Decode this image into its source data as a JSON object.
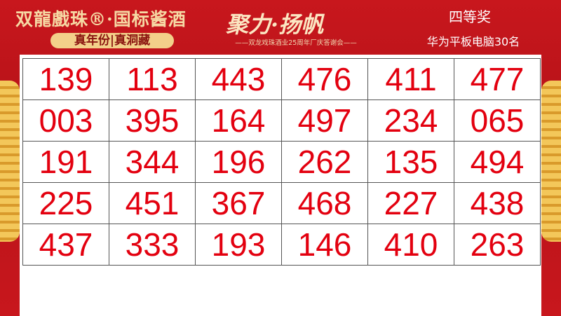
{
  "header": {
    "brand": "双龍戲珠®·国标酱酒",
    "tagline": "真年份|真洞藏",
    "slogan": "聚力·扬帆",
    "subtitle": "——双龙戏珠酒业25周年厂庆答谢会——",
    "prize_level": "四等奖",
    "prize_desc": "华为平板电脑30名"
  },
  "colors": {
    "background": "#c4161c",
    "number": "#e3000f",
    "gold": "#f3d08a"
  },
  "numbers": [
    [
      "139",
      "113",
      "443",
      "476",
      "411",
      "477"
    ],
    [
      "003",
      "395",
      "164",
      "497",
      "234",
      "065"
    ],
    [
      "191",
      "344",
      "196",
      "262",
      "135",
      "494"
    ],
    [
      "225",
      "451",
      "367",
      "468",
      "227",
      "438"
    ],
    [
      "437",
      "333",
      "193",
      "146",
      "410",
      "263"
    ]
  ]
}
